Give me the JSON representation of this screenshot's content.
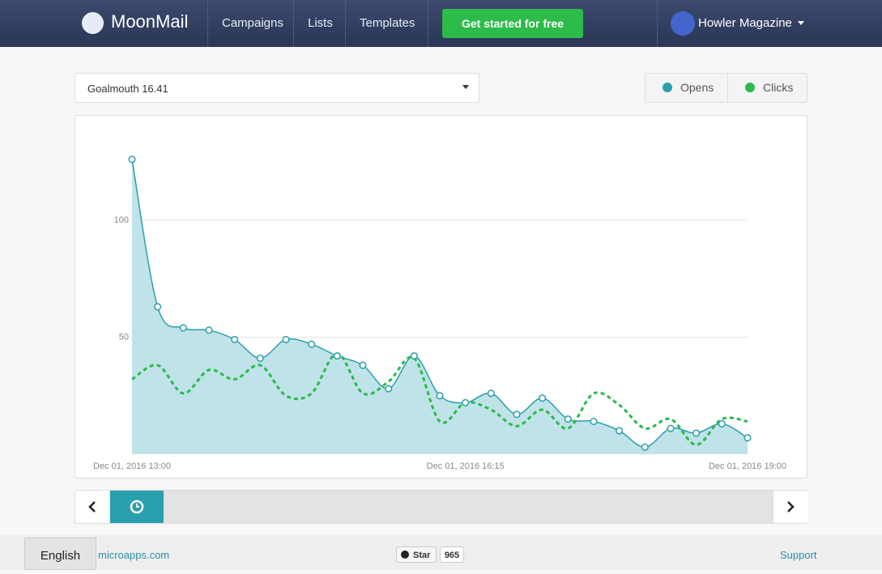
{
  "nav": {
    "logo": "MoonMail",
    "links": [
      "Campaigns",
      "Lists",
      "Templates"
    ],
    "cta": "Get started for free",
    "user": "Howler Magazine"
  },
  "campaign_select": "Goalmouth 16.41",
  "chart_data": {
    "type": "line",
    "categories": [
      "Dec 01, 2016 13:00",
      null,
      null,
      null,
      null,
      null,
      null,
      null,
      null,
      null,
      null,
      null,
      null,
      "Dec 01, 2016 16:15",
      null,
      null,
      null,
      null,
      null,
      null,
      null,
      null,
      null,
      null,
      "Dec 01, 2016 19:00"
    ],
    "series": [
      {
        "name": "Opens",
        "color": "#2a9fad",
        "fill": "#bfe3e8",
        "values": [
          126,
          63,
          54,
          53,
          49,
          41,
          49,
          47,
          42,
          38,
          28,
          42,
          25,
          22,
          26,
          17,
          24,
          15,
          14,
          10,
          3,
          11,
          9,
          13,
          7
        ]
      },
      {
        "name": "Clicks",
        "color": "#2cb84a",
        "dashed": true,
        "values": [
          32,
          38,
          26,
          36,
          32,
          38,
          25,
          26,
          43,
          26,
          31,
          41,
          14,
          22,
          19,
          12,
          19,
          11,
          26,
          21,
          11,
          15,
          4,
          15,
          14
        ]
      }
    ],
    "ylim": [
      0,
      130
    ],
    "yticks": [
      50,
      100
    ],
    "grid": true
  },
  "footer": {
    "language": "English",
    "link": "microapps.com",
    "github_button": "Star",
    "github_stars": 965,
    "support": "Support"
  }
}
